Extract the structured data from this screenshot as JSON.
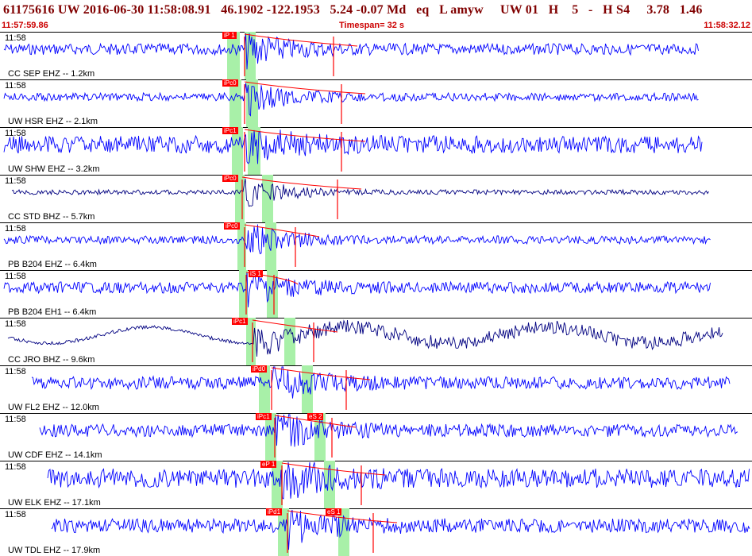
{
  "header": {
    "title": "61175616 UW 2016-06-30 11:58:08.91   46.1902 -122.1953   5.24 -0.07 Md   eq   L amyw     UW 01   H    5   -   H S4     3.78   1.46",
    "start_time": "11:57:59.86",
    "timespan": "Timespan=  32 s",
    "end_time": "11:58:32.12"
  },
  "colors": {
    "trace_blue": "#0000ff",
    "trace_dark": "#000080",
    "pick_red": "#ff0000",
    "window_green": "#a8f0a8",
    "title_maroon": "#800000"
  },
  "panels": [
    {
      "time": "11:58",
      "label": "CC SEP EHZ -- 1.2km",
      "pick": "iP 1",
      "trace": "blue"
    },
    {
      "time": "11:58",
      "label": "UW HSR EHZ -- 2.1km",
      "pick": "iPc0",
      "trace": "blue"
    },
    {
      "time": "11:58",
      "label": "UW SHW EHZ -- 3.2km",
      "pick": "iPc1",
      "trace": "blue"
    },
    {
      "time": "11:58",
      "label": "CC STD BHZ -- 5.7km",
      "pick": "iPc0",
      "trace": "dark"
    },
    {
      "time": "11:58",
      "label": "PB B204 EHZ -- 6.4km",
      "pick": "iPc0",
      "trace": "blue"
    },
    {
      "time": "11:58",
      "label": "PB B204 EH1 -- 6.4km",
      "pick": "iS 1",
      "trace": "blue"
    },
    {
      "time": "11:58",
      "label": "CC JRO BHZ -- 9.6km",
      "pick": "iPc1",
      "trace": "dark"
    },
    {
      "time": "11:58",
      "label": "UW FL2 EHZ -- 12.0km",
      "pick": "iPd0",
      "trace": "blue"
    },
    {
      "time": "11:58",
      "label": "UW CDF EHZ -- 14.1km",
      "pick": "iPc1",
      "pick2": "eS 2",
      "trace": "blue"
    },
    {
      "time": "11:58",
      "label": "UW ELK EHZ -- 17.1km",
      "pick": "eP 1",
      "trace": "blue"
    },
    {
      "time": "11:58",
      "label": "UW TDL EHZ -- 17.9km",
      "pick": "iPd1",
      "pick2": "eS 1",
      "trace": "blue"
    }
  ]
}
